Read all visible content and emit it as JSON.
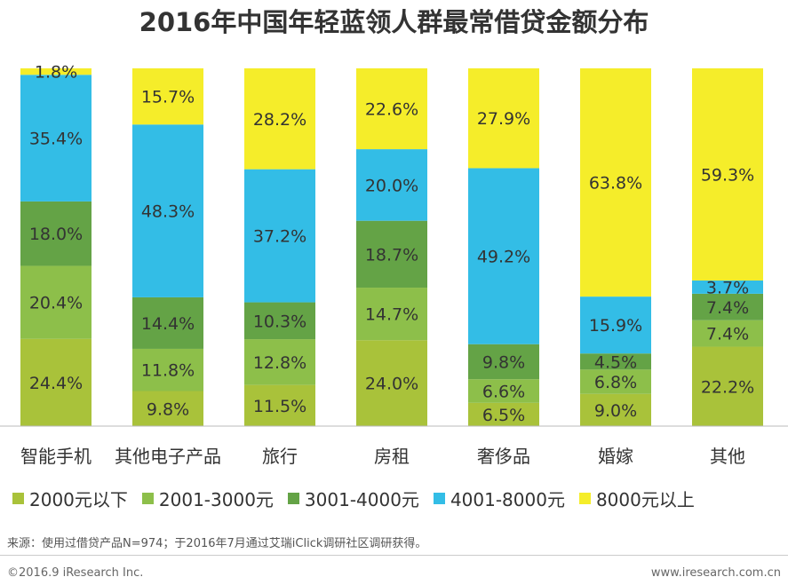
{
  "chart_data": {
    "type": "bar",
    "stacked": true,
    "title": "2016年中国年轻蓝领人群最常借贷金额分布",
    "categories": [
      "智能手机",
      "其他电子产品",
      "旅行",
      "房租",
      "奢侈品",
      "婚嫁",
      "其他"
    ],
    "ylim": [
      0,
      100
    ],
    "series": [
      {
        "name": "2000元以下",
        "color": "#a9c23a",
        "values": [
          24.4,
          9.8,
          11.5,
          24.0,
          6.5,
          9.0,
          22.2
        ],
        "labels": [
          "24.4%",
          "9.8%",
          "11.5%",
          "24.0%",
          "6.5%",
          "9.0%",
          "22.2%"
        ]
      },
      {
        "name": "2001-3000元",
        "color": "#8dbf4a",
        "values": [
          20.4,
          11.8,
          12.8,
          14.7,
          6.6,
          6.8,
          7.4
        ],
        "labels": [
          "20.4%",
          "11.8%",
          "12.8%",
          "14.7%",
          "6.6%",
          "6.8%",
          "7.4%"
        ]
      },
      {
        "name": "3001-4000元",
        "color": "#64a346",
        "values": [
          18.0,
          14.4,
          10.3,
          18.7,
          9.8,
          4.5,
          7.4
        ],
        "labels": [
          "18.0%",
          "14.4%",
          "10.3%",
          "18.7%",
          "9.8%",
          "4.5%",
          "7.4%"
        ]
      },
      {
        "name": "4001-8000元",
        "color": "#33bde6",
        "values": [
          35.4,
          48.3,
          37.2,
          20.0,
          49.2,
          15.9,
          3.7
        ],
        "labels": [
          "35.4%",
          "48.3%",
          "37.2%",
          "20.0%",
          "49.2%",
          "15.9%",
          "3.7%"
        ]
      },
      {
        "name": "8000元以上",
        "color": "#f5ed2a",
        "values": [
          1.8,
          15.7,
          28.2,
          22.6,
          27.9,
          63.8,
          59.3
        ],
        "labels": [
          "1.8%",
          "15.7%",
          "28.2%",
          "22.6%",
          "27.9%",
          "63.8%",
          "59.3%"
        ]
      }
    ],
    "legend_position": "bottom",
    "grid": false
  },
  "source_note": "来源：使用过借贷产品N=974；于2016年7月通过艾瑞iClick调研社区调研获得。",
  "footer": {
    "copyright": "©2016.9 iResearch Inc.",
    "website": "www.iresearch.com.cn"
  }
}
